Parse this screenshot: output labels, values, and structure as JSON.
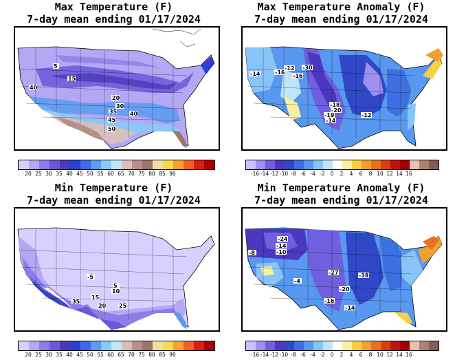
{
  "panels": [
    {
      "title_line1": "Max Temperature (F)",
      "title_line2": "7-day mean ending 01/17/2024",
      "colorbar": {
        "colors": [
          "#d8d0ff",
          "#b4a8f5",
          "#8c7ee8",
          "#6a58d8",
          "#4a3ab8",
          "#2a40d0",
          "#3c6ae8",
          "#5a9cf0",
          "#8cc8f8",
          "#c0e6f8",
          "#d8c0b8",
          "#b89088",
          "#9c7468",
          "#f0e0a0",
          "#f8d850",
          "#f8a030",
          "#f06020",
          "#d82010",
          "#b00000"
        ],
        "tick_labels": [
          "20",
          "25",
          "30",
          "35",
          "40",
          "45",
          "50",
          "55",
          "60",
          "65",
          "70",
          "75",
          "80",
          "85",
          "90"
        ]
      },
      "contour_labels": [
        "5",
        "15",
        "40",
        "20",
        "30",
        "35",
        "40",
        "45",
        "50"
      ]
    },
    {
      "title_line1": "Max Temperature Anomaly (F)",
      "title_line2": "7-day mean ending 01/17/2024",
      "colorbar": {
        "colors": [
          "#c8c0ff",
          "#9c90f0",
          "#7060e0",
          "#4a38c0",
          "#3048c8",
          "#3c70e0",
          "#5898f0",
          "#88c4f8",
          "#c0e4f8",
          "#ffffff",
          "#f8f0a0",
          "#f8d040",
          "#f0a030",
          "#e87020",
          "#d84010",
          "#c01010",
          "#a00000",
          "#e8c0b0",
          "#b08070",
          "#806050"
        ],
        "tick_labels": [
          "-16",
          "-14",
          "-12",
          "-10",
          "-8",
          "-6",
          "-4",
          "-2",
          "0",
          "2",
          "4",
          "6",
          "8",
          "10",
          "12",
          "14",
          "16"
        ]
      },
      "contour_labels": [
        "-14",
        "-16",
        "-12",
        "-30",
        "-18",
        "-20",
        "-19",
        "-14",
        "-12",
        "-16"
      ]
    },
    {
      "title_line1": "Min Temperature (F)",
      "title_line2": "7-day mean ending 01/17/2024",
      "colorbar": {
        "colors": [
          "#d8d0ff",
          "#b4a8f5",
          "#8c7ee8",
          "#6a58d8",
          "#4a3ab8",
          "#2a40d0",
          "#3c6ae8",
          "#5a9cf0",
          "#8cc8f8",
          "#c0e6f8",
          "#d8c0b8",
          "#b89088",
          "#9c7468",
          "#f0e0a0",
          "#f8d850",
          "#f8a030",
          "#f06020",
          "#d82010",
          "#b00000"
        ],
        "tick_labels": [
          "20",
          "25",
          "30",
          "35",
          "40",
          "45",
          "50",
          "55",
          "60",
          "65",
          "70",
          "75",
          "80",
          "85",
          "90"
        ]
      },
      "contour_labels": [
        "-5",
        "5",
        "10",
        "15",
        "20",
        "25",
        "35"
      ]
    },
    {
      "title_line1": "Min Temperature Anomaly (F)",
      "title_line2": "7-day mean ending 01/17/2024",
      "colorbar": {
        "colors": [
          "#c8c0ff",
          "#9c90f0",
          "#7060e0",
          "#4a38c0",
          "#3048c8",
          "#3c70e0",
          "#5898f0",
          "#88c4f8",
          "#c0e4f8",
          "#ffffff",
          "#f8f0a0",
          "#f8d040",
          "#f0a030",
          "#e87020",
          "#d84010",
          "#c01010",
          "#a00000",
          "#e8c0b0",
          "#b08070",
          "#806050"
        ],
        "tick_labels": [
          "-16",
          "-14",
          "-12",
          "-10",
          "-8",
          "-6",
          "-4",
          "-2",
          "0",
          "2",
          "4",
          "6",
          "8",
          "10",
          "12",
          "14",
          "16"
        ]
      },
      "contour_labels": [
        "-24",
        "-14",
        "-10",
        "-8",
        "-4",
        "-27",
        "-18",
        "-20",
        "-16",
        "-14"
      ]
    }
  ]
}
